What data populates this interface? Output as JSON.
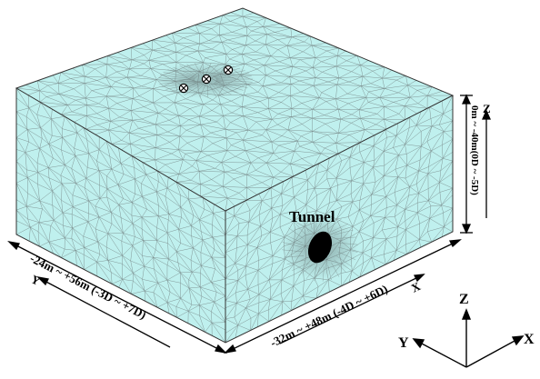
{
  "labels": {
    "tunnel": "Tunnel",
    "x_range": "-32m ~ +48m (-4D ~ +6D)",
    "y_range": "-24m ~ +56m (-3D ~ +7D)",
    "z_range": "0m ~ -40m(0D ~ -5D)",
    "x_axis_small": "X",
    "y_axis_small": "Y",
    "z_axis_small": "Z",
    "axis_x": "X",
    "axis_y": "Y",
    "axis_z": "Z"
  },
  "colors": {
    "soil_fill": "#bff0ee",
    "mesh_line": "#7a8c8c",
    "edge": "#333333",
    "tunnel": "#000000"
  },
  "icons": {
    "surface_markers": [
      "circled-x-icon",
      "circled-x-icon",
      "circled-x-icon"
    ]
  }
}
